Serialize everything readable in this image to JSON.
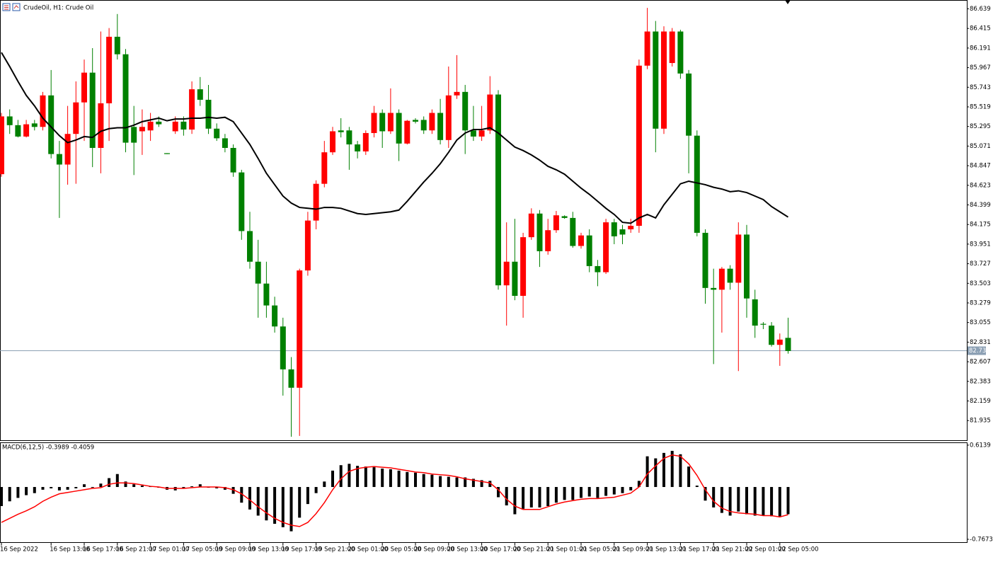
{
  "chart_data": [
    {
      "type": "candlestick",
      "title": "CrudeOil, H1: Crude Oil",
      "categories": [
        "16 Sep 2022",
        null,
        null,
        null,
        null,
        null,
        "16 Sep 13:00",
        null,
        null,
        null,
        "16 Sep 17:00",
        null,
        null,
        null,
        "16 Sep 21:00",
        null,
        null,
        null,
        "17 Sep 01:00",
        null,
        null,
        null,
        "17 Sep 05:00",
        null,
        null,
        null,
        "19 Sep 09:00",
        null,
        null,
        null,
        "19 Sep 13:00",
        null,
        null,
        null,
        "19 Sep 17:00",
        null,
        null,
        null,
        "19 Sep 21:00",
        null,
        null,
        null,
        "20 Sep 01:00",
        null,
        null,
        null,
        "20 Sep 05:00",
        null,
        null,
        null,
        "20 Sep 09:00",
        null,
        null,
        null,
        "20 Sep 13:00",
        null,
        null,
        null,
        "20 Sep 17:00",
        null,
        null,
        null,
        "20 Sep 21:00",
        null,
        null,
        null,
        "21 Sep 01:00",
        null,
        null,
        null,
        "21 Sep 05:00",
        null,
        null,
        null,
        "21 Sep 09:00",
        null,
        null,
        null,
        "21 Sep 13:00",
        null,
        null,
        null,
        "21 Sep 17:00",
        null,
        null,
        null,
        "21 Sep 21:00",
        null,
        null,
        null,
        "22 Sep 01:00",
        null,
        null,
        null,
        "22 Sep 05:00",
        null
      ],
      "open": [
        84.75,
        85.41,
        85.31,
        85.18,
        85.33,
        85.29,
        85.65,
        84.98,
        84.86,
        85.21,
        85.57,
        85.91,
        85.05,
        85.56,
        86.32,
        86.12,
        85.29,
        85.24,
        85.25,
        85.35,
        84.99,
        85.24,
        85.35,
        85.26,
        85.72,
        85.6,
        85.27,
        85.16,
        85.05,
        84.77,
        84.1,
        83.75,
        83.5,
        83.25,
        83.01,
        82.52,
        82.31,
        83.65,
        84.22,
        84.64,
        85.0,
        85.25,
        85.25,
        85.09,
        85.01,
        85.22,
        85.45,
        85.24,
        85.45,
        85.1,
        85.37,
        85.37,
        85.25,
        85.45,
        85.14,
        85.65,
        85.69,
        85.25,
        85.18,
        85.25,
        85.66,
        83.48,
        83.75,
        83.36,
        84.03,
        84.3,
        83.87,
        84.11,
        84.27,
        84.25,
        83.93,
        84.05,
        83.7,
        83.63,
        84.2,
        84.12,
        84.12,
        84.16,
        85.99,
        86.38,
        85.27,
        86.02,
        86.38,
        85.9,
        85.19,
        84.08,
        83.45,
        83.43,
        83.67,
        83.51,
        84.06,
        83.32,
        83.04,
        83.02,
        82.8,
        82.88
      ],
      "high": [
        85.45,
        85.49,
        85.37,
        85.37,
        85.37,
        85.69,
        85.94,
        85.13,
        85.53,
        85.81,
        86.06,
        86.19,
        86.38,
        86.42,
        86.58,
        86.18,
        85.53,
        85.49,
        85.45,
        85.41,
        84.99,
        85.41,
        85.41,
        85.81,
        85.86,
        85.77,
        85.33,
        85.21,
        85.09,
        84.8,
        84.32,
        84.0,
        83.75,
        83.35,
        83.11,
        82.66,
        83.67,
        84.32,
        84.68,
        85.13,
        85.29,
        85.39,
        85.29,
        85.13,
        85.25,
        85.53,
        85.49,
        85.73,
        85.49,
        85.37,
        85.39,
        85.41,
        85.49,
        85.61,
        85.98,
        86.11,
        85.77,
        85.53,
        85.53,
        85.87,
        85.71,
        84.2,
        84.24,
        84.08,
        84.36,
        84.34,
        84.24,
        84.33,
        84.28,
        84.32,
        84.08,
        84.12,
        83.77,
        84.24,
        84.24,
        84.17,
        84.24,
        86.06,
        86.65,
        86.5,
        86.44,
        86.42,
        86.4,
        85.94,
        85.25,
        84.12,
        83.67,
        83.69,
        83.71,
        84.2,
        84.17,
        83.43,
        83.06,
        83.06,
        82.93,
        83.11
      ],
      "low": [
        84.72,
        85.21,
        85.17,
        85.17,
        85.25,
        85.25,
        84.93,
        84.25,
        84.63,
        84.64,
        85.13,
        84.83,
        84.76,
        85.13,
        86.06,
        85.0,
        84.74,
        84.97,
        85.13,
        85.29,
        84.98,
        85.21,
        85.19,
        85.21,
        85.53,
        85.21,
        85.13,
        85.0,
        84.72,
        84.0,
        83.67,
        83.11,
        83.11,
        82.94,
        82.22,
        81.75,
        81.76,
        83.59,
        84.12,
        84.6,
        84.97,
        85.17,
        84.8,
        84.93,
        84.97,
        85.17,
        85.05,
        85.21,
        84.9,
        85.09,
        85.33,
        85.21,
        85.21,
        85.09,
        85.05,
        85.61,
        84.98,
        85.13,
        85.13,
        85.21,
        83.43,
        83.02,
        83.31,
        83.11,
        84.0,
        83.69,
        83.83,
        84.08,
        84.24,
        83.91,
        83.9,
        83.63,
        83.47,
        83.61,
        83.95,
        83.95,
        84.08,
        84.08,
        85.95,
        85.0,
        85.21,
        85.98,
        85.84,
        84.76,
        84.04,
        83.27,
        82.58,
        82.94,
        83.43,
        82.5,
        83.11,
        82.88,
        82.98,
        82.78,
        82.56,
        82.7
      ],
      "close": [
        85.41,
        85.31,
        85.18,
        85.32,
        85.29,
        85.65,
        84.98,
        84.86,
        85.21,
        85.57,
        85.91,
        85.05,
        85.56,
        86.32,
        86.12,
        85.11,
        85.11,
        85.29,
        85.35,
        85.32,
        84.98,
        85.35,
        85.26,
        85.72,
        85.6,
        85.27,
        85.16,
        85.05,
        84.77,
        84.1,
        83.75,
        83.5,
        83.25,
        83.01,
        82.52,
        82.31,
        83.65,
        84.22,
        84.64,
        85.0,
        85.24,
        85.23,
        85.09,
        85.01,
        85.22,
        85.45,
        85.24,
        85.45,
        85.1,
        85.36,
        85.35,
        85.25,
        85.45,
        85.14,
        85.65,
        85.69,
        85.25,
        85.18,
        85.25,
        85.66,
        83.48,
        83.75,
        83.36,
        84.03,
        84.3,
        83.87,
        84.11,
        84.28,
        84.25,
        83.93,
        84.05,
        83.7,
        83.63,
        84.2,
        84.04,
        84.06,
        84.16,
        85.99,
        86.38,
        85.27,
        86.38,
        86.38,
        85.9,
        85.19,
        84.08,
        83.45,
        83.43,
        83.67,
        83.51,
        84.06,
        83.33,
        83.02,
        83.03,
        82.8,
        82.86,
        82.73
      ],
      "up_color": "#ff0000",
      "down_color": "#008000",
      "ma": {
        "color": "#000000",
        "values": [
          86.14,
          85.98,
          85.81,
          85.65,
          85.53,
          85.39,
          85.29,
          85.19,
          85.11,
          85.14,
          85.18,
          85.17,
          85.24,
          85.27,
          85.28,
          85.28,
          85.31,
          85.35,
          85.37,
          85.39,
          85.36,
          85.38,
          85.38,
          85.39,
          85.39,
          85.4,
          85.39,
          85.4,
          85.35,
          85.22,
          85.09,
          84.93,
          84.76,
          84.63,
          84.5,
          84.42,
          84.37,
          84.36,
          84.35,
          84.37,
          84.37,
          84.36,
          84.33,
          84.3,
          84.29,
          84.3,
          84.31,
          84.32,
          84.34,
          84.44,
          84.55,
          84.66,
          84.76,
          84.87,
          85.0,
          85.14,
          85.22,
          85.26,
          85.26,
          85.28,
          85.22,
          85.14,
          85.06,
          85.02,
          84.97,
          84.91,
          84.84,
          84.8,
          84.75,
          84.67,
          84.59,
          84.52,
          84.44,
          84.36,
          84.29,
          84.2,
          84.19,
          84.25,
          84.29,
          84.25,
          84.4,
          84.52,
          84.64,
          84.67,
          84.65,
          84.63,
          84.6,
          84.58,
          84.55,
          84.56,
          84.54,
          84.5,
          84.46,
          84.38,
          84.32,
          84.26
        ]
      },
      "price_line": 82.733,
      "price_line_color": "#8ca0b4",
      "ylim": [
        81.71,
        86.74
      ],
      "yticks": [
        86.639,
        86.415,
        86.191,
        85.967,
        85.743,
        85.519,
        85.295,
        85.071,
        84.847,
        84.623,
        84.399,
        84.175,
        83.951,
        83.727,
        83.503,
        83.279,
        83.055,
        82.831,
        82.607,
        82.383,
        82.159,
        81.935
      ]
    },
    {
      "type": "macd",
      "label": "MACD(6,12,5) -0.3989 -0.4059",
      "histogram": {
        "color": "#000000",
        "values": [
          -0.28,
          -0.21,
          -0.16,
          -0.12,
          -0.09,
          -0.04,
          -0.02,
          -0.05,
          -0.04,
          -0.02,
          0.04,
          -0.01,
          0.05,
          0.13,
          0.19,
          0.08,
          0.04,
          0.02,
          0.01,
          -0.01,
          -0.04,
          -0.05,
          -0.02,
          0.01,
          0.04,
          -0.01,
          -0.02,
          -0.04,
          -0.1,
          -0.23,
          -0.33,
          -0.42,
          -0.49,
          -0.54,
          -0.59,
          -0.65,
          -0.45,
          -0.25,
          -0.09,
          0.08,
          0.24,
          0.32,
          0.34,
          0.31,
          0.3,
          0.29,
          0.27,
          0.26,
          0.24,
          0.22,
          0.21,
          0.19,
          0.18,
          0.16,
          0.15,
          0.14,
          0.14,
          0.12,
          0.1,
          0.09,
          -0.15,
          -0.27,
          -0.4,
          -0.32,
          -0.3,
          -0.3,
          -0.28,
          -0.23,
          -0.19,
          -0.19,
          -0.16,
          -0.14,
          -0.16,
          -0.13,
          -0.11,
          -0.09,
          -0.05,
          0.09,
          0.45,
          0.42,
          0.5,
          0.53,
          0.48,
          0.3,
          0.02,
          -0.2,
          -0.3,
          -0.38,
          -0.42,
          -0.36,
          -0.4,
          -0.42,
          -0.42,
          -0.43,
          -0.43,
          -0.3989
        ]
      },
      "signal": {
        "color": "#ff0000",
        "values": [
          -0.52,
          -0.46,
          -0.4,
          -0.35,
          -0.29,
          -0.21,
          -0.15,
          -0.1,
          -0.08,
          -0.06,
          -0.04,
          -0.02,
          -0.01,
          0.04,
          0.06,
          0.06,
          0.05,
          0.03,
          0.01,
          0.0,
          -0.02,
          -0.02,
          -0.02,
          -0.01,
          0.0,
          0.0,
          0.0,
          -0.01,
          -0.04,
          -0.1,
          -0.19,
          -0.29,
          -0.38,
          -0.46,
          -0.52,
          -0.56,
          -0.58,
          -0.52,
          -0.39,
          -0.23,
          -0.04,
          0.12,
          0.23,
          0.27,
          0.29,
          0.3,
          0.29,
          0.28,
          0.26,
          0.24,
          0.22,
          0.21,
          0.19,
          0.18,
          0.17,
          0.15,
          0.12,
          0.1,
          0.08,
          0.06,
          -0.04,
          -0.18,
          -0.28,
          -0.33,
          -0.33,
          -0.33,
          -0.29,
          -0.25,
          -0.22,
          -0.2,
          -0.18,
          -0.17,
          -0.17,
          -0.16,
          -0.15,
          -0.12,
          -0.09,
          0.0,
          0.19,
          0.31,
          0.42,
          0.47,
          0.45,
          0.34,
          0.17,
          -0.04,
          -0.21,
          -0.31,
          -0.36,
          -0.38,
          -0.39,
          -0.4,
          -0.42,
          -0.42,
          -0.44,
          -0.4059
        ]
      },
      "ylim": [
        -0.82,
        0.644
      ],
      "yticks": [
        0.6139,
        -0.7673
      ]
    }
  ]
}
